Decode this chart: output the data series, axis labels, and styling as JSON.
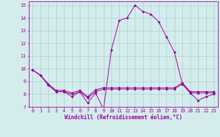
{
  "bg_color": "#d4ecec",
  "line_color": "#990099",
  "grid_color": "#aacece",
  "xlabel": "Windchill (Refroidissement éolien,°C)",
  "x_values": [
    0,
    1,
    2,
    3,
    4,
    5,
    6,
    7,
    8,
    9,
    10,
    11,
    12,
    13,
    14,
    15,
    16,
    17,
    18,
    19,
    20,
    21,
    22,
    23
  ],
  "curve_main": [
    9.9,
    9.5,
    8.7,
    8.2,
    8.2,
    7.8,
    8.2,
    7.3,
    8.1,
    6.8,
    11.5,
    13.8,
    14.0,
    15.0,
    14.5,
    14.3,
    13.7,
    12.5,
    11.3,
    8.8,
    8.1,
    7.5,
    7.8,
    8.0
  ],
  "curve_flat1": [
    9.9,
    9.5,
    8.7,
    8.2,
    8.2,
    8.0,
    8.2,
    7.7,
    8.2,
    8.4,
    8.4,
    8.4,
    8.4,
    8.4,
    8.4,
    8.4,
    8.4,
    8.4,
    8.4,
    8.8,
    8.1,
    8.1,
    8.1,
    8.1
  ],
  "curve_flat2": [
    9.9,
    9.5,
    8.8,
    8.3,
    8.3,
    8.1,
    8.3,
    7.8,
    8.35,
    8.5,
    8.5,
    8.5,
    8.5,
    8.5,
    8.5,
    8.5,
    8.5,
    8.5,
    8.5,
    8.9,
    8.2,
    8.2,
    8.2,
    8.2
  ],
  "xlim": [
    -0.5,
    23.5
  ],
  "ylim": [
    7,
    15.3
  ],
  "yticks": [
    7,
    8,
    9,
    10,
    11,
    12,
    13,
    14,
    15
  ],
  "xticks": [
    0,
    1,
    2,
    3,
    4,
    5,
    6,
    7,
    8,
    9,
    10,
    11,
    12,
    13,
    14,
    15,
    16,
    17,
    18,
    19,
    20,
    21,
    22,
    23
  ],
  "tick_fontsize": 5.0,
  "xlabel_fontsize": 5.5
}
